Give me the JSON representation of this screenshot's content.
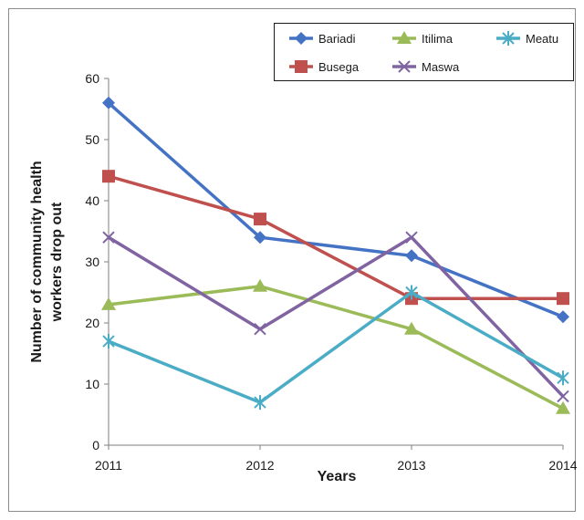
{
  "chart_data": {
    "type": "line",
    "title": "",
    "xlabel": "Years",
    "ylabel": "Number of community health workers drop out",
    "ylabel_lines": [
      "Number of community health",
      "workers drop out"
    ],
    "x": [
      "2011",
      "2012",
      "2013",
      "2014"
    ],
    "ylim": [
      0,
      60
    ],
    "yticks": [
      0,
      10,
      20,
      30,
      40,
      50,
      60
    ],
    "grid": false,
    "legend_position": "top-right",
    "series": [
      {
        "name": "Bariadi",
        "values": [
          56,
          34,
          31,
          21
        ],
        "color": "#4472c4",
        "marker": "diamond"
      },
      {
        "name": "Busega",
        "values": [
          44,
          37,
          24,
          24
        ],
        "color": "#c0504d",
        "marker": "square"
      },
      {
        "name": "Itilima",
        "values": [
          23,
          26,
          19,
          6
        ],
        "color": "#9bbb59",
        "marker": "triangle"
      },
      {
        "name": "Maswa",
        "values": [
          34,
          19,
          34,
          8
        ],
        "color": "#8064a2",
        "marker": "x"
      },
      {
        "name": "Meatu",
        "values": [
          17,
          7,
          25,
          11
        ],
        "color": "#4bacc6",
        "marker": "asterisk"
      }
    ]
  }
}
